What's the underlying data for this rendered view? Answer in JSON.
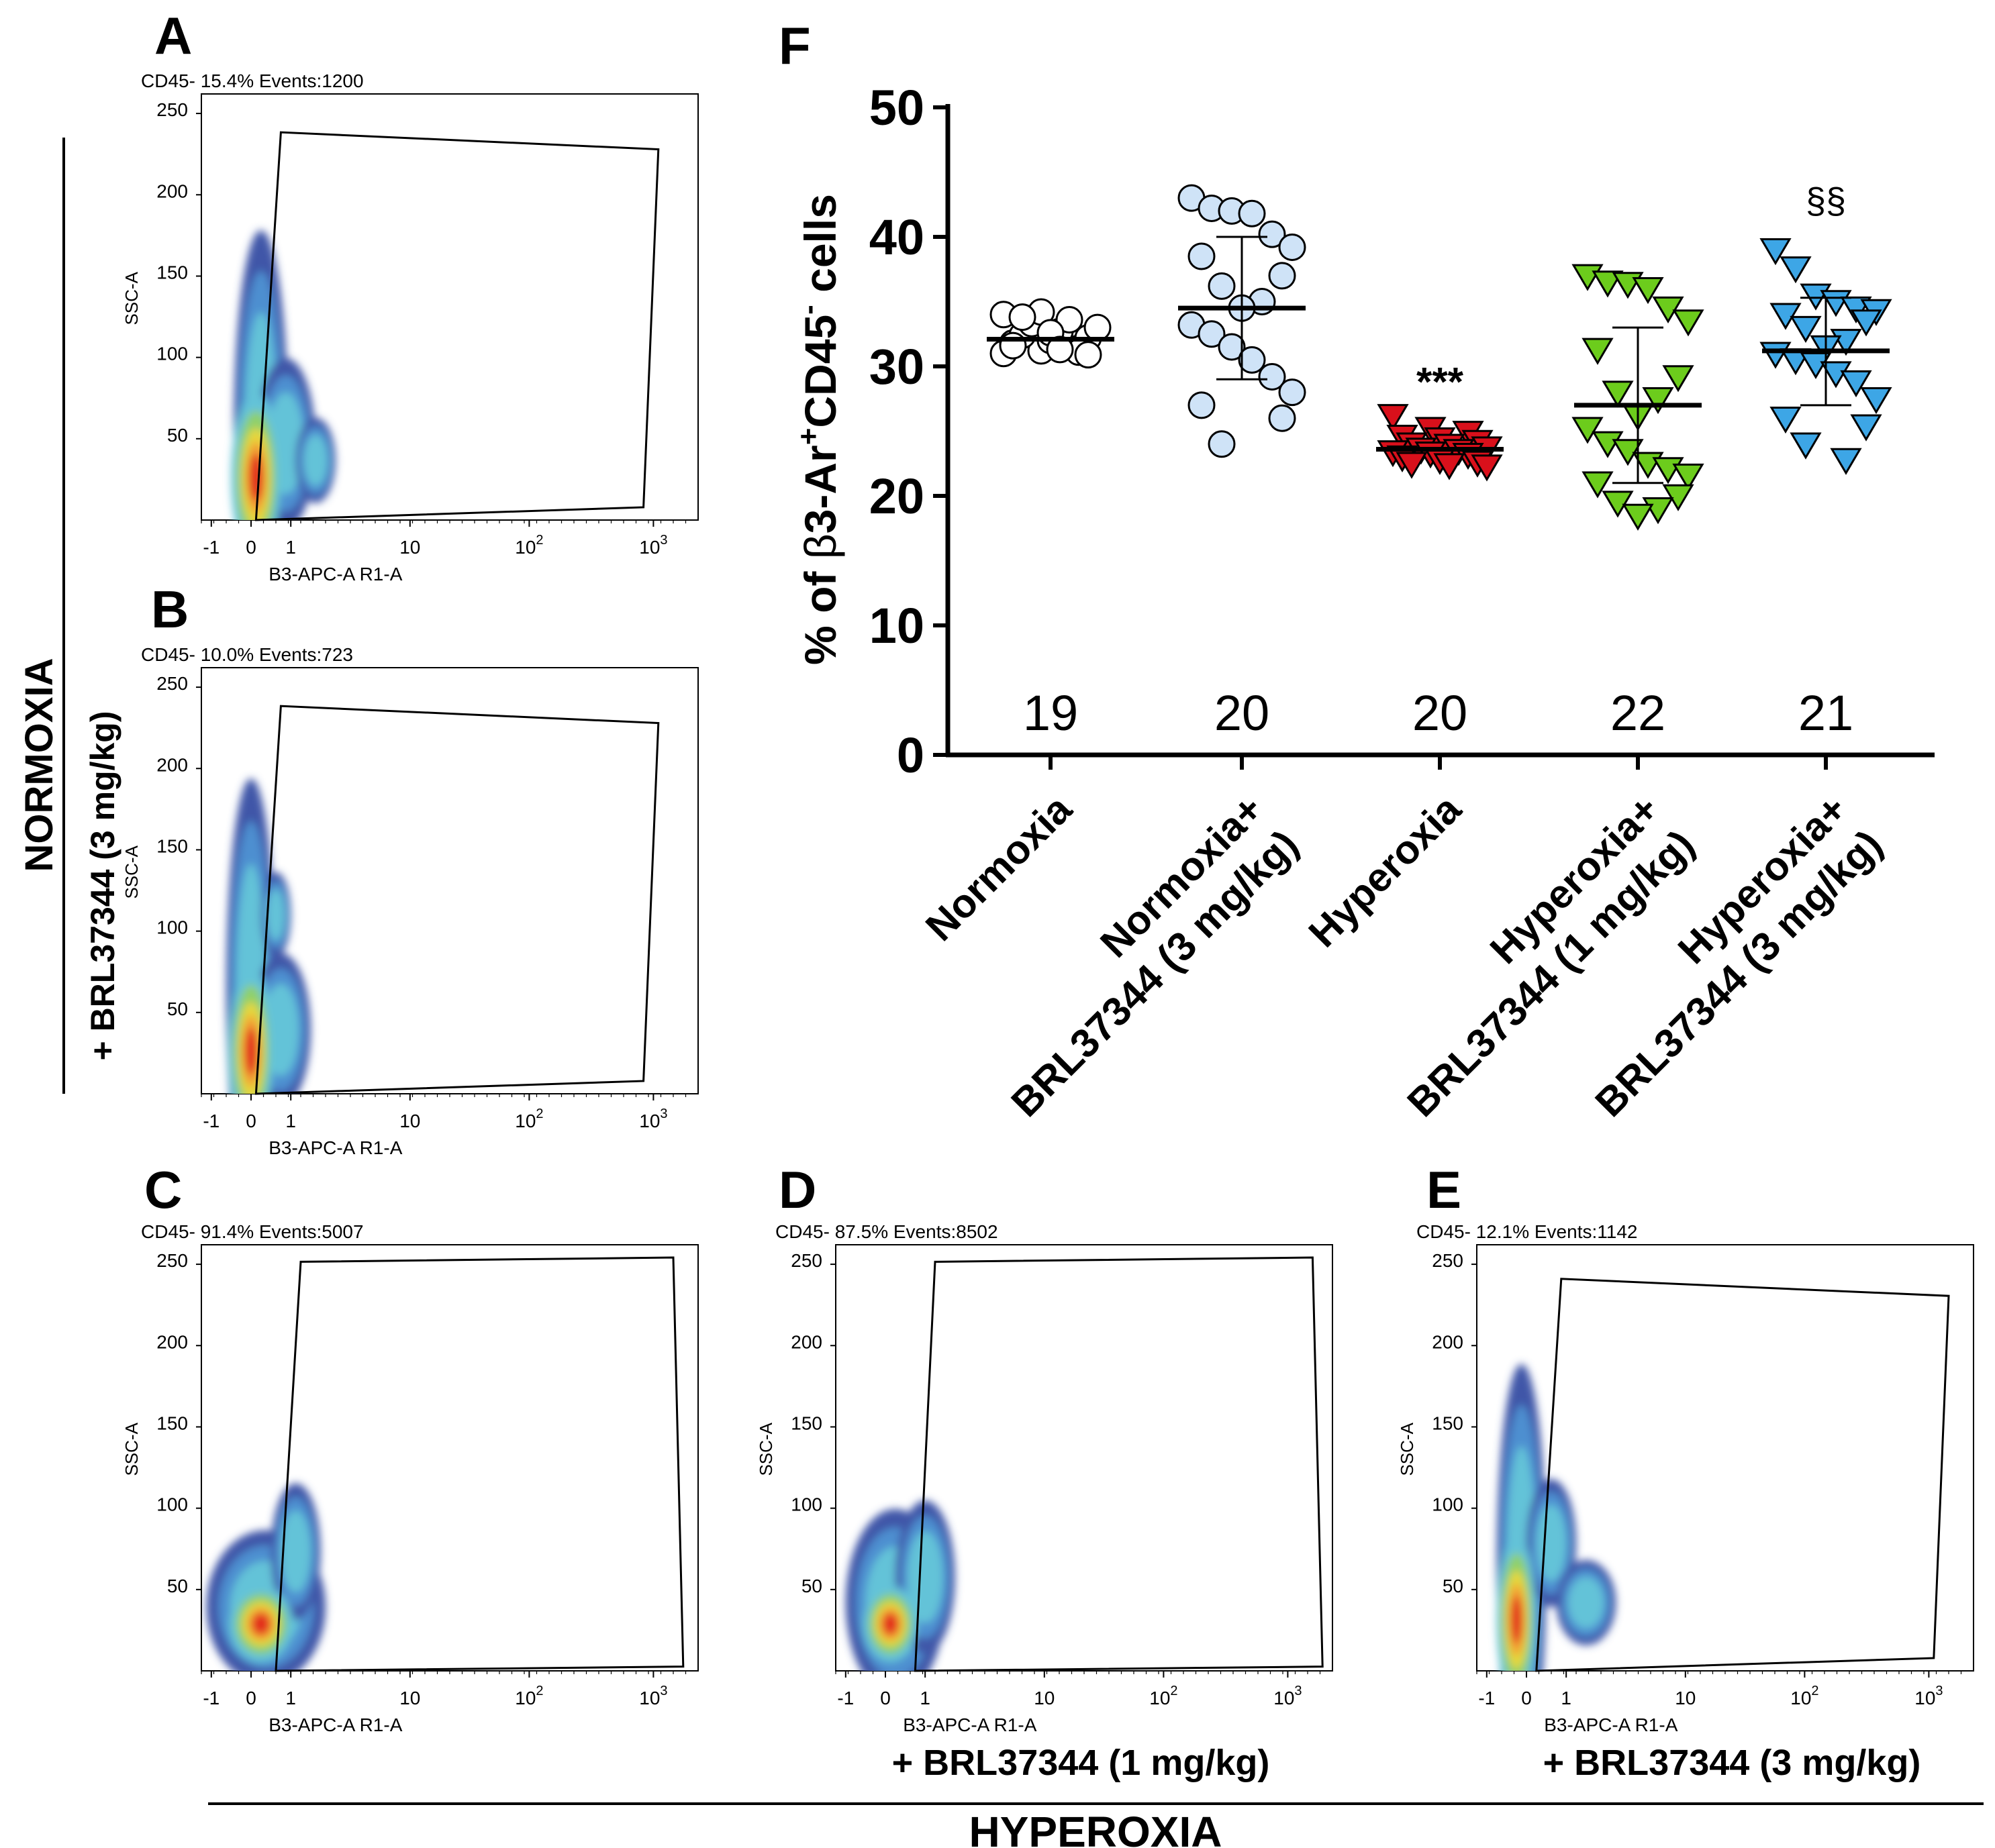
{
  "colors": {
    "normoxia": "#ffffff",
    "normoxia_brl": "#cfe3f7",
    "hyperoxia": "#d9101b",
    "hyperoxia_brl1": "#6ccc1c",
    "hyperoxia_brl3": "#3da6e6",
    "density_low": "#3f56a8",
    "density_mid1": "#4d8fd0",
    "density_mid2": "#63c3d8",
    "density_mid3": "#8fd06a",
    "density_high1": "#e7d73a",
    "density_high2": "#f29d35",
    "density_peak": "#e2291f"
  },
  "side_labels": {
    "normoxia": "NORMOXIA",
    "normoxia_brl": "+ BRL37344 (3 mg/kg)",
    "hyperoxia": "HYPEROXIA",
    "hyperoxia_brl1": "+ BRL37344 (1 mg/kg)",
    "hyperoxia_brl3": "+ BRL37344 (3 mg/kg)"
  },
  "flow_axes": {
    "xlabel": "B3-APC-A R1-A",
    "ylabel": "SSC-A",
    "yticks": [
      "250",
      "200",
      "150",
      "100",
      "50"
    ],
    "xticks": [
      "-1",
      "0",
      "1",
      "10",
      "10",
      "10"
    ],
    "xtick_exponents": [
      "",
      "",
      "",
      "",
      "2",
      "3"
    ]
  },
  "panels": [
    {
      "letter": "A",
      "gate_label": "CD45-",
      "percent": "15.4%",
      "events_label": "Events:1200",
      "events": 1200
    },
    {
      "letter": "B",
      "gate_label": "CD45-",
      "percent": "10.0%",
      "events_label": "Events:723",
      "events": 723
    },
    {
      "letter": "C",
      "gate_label": "CD45-",
      "percent": "91.4%",
      "events_label": "Events:5007",
      "events": 5007
    },
    {
      "letter": "D",
      "gate_label": "CD45-",
      "percent": "87.5%",
      "events_label": "Events:8502",
      "events": 8502
    },
    {
      "letter": "E",
      "gate_label": "CD45-",
      "percent": "12.1%",
      "events_label": "Events:1142",
      "events": 1142
    }
  ],
  "chart_data": [
    {
      "type": "scatter",
      "panel": "F",
      "title": "",
      "ylabel_parts": [
        "% of ",
        "β",
        "3-Ar",
        "+",
        "CD45",
        "-",
        " cells"
      ],
      "ylim": [
        0,
        50
      ],
      "yticks": [
        0,
        10,
        20,
        30,
        40,
        50
      ],
      "ytick_labels": [
        "0",
        "10",
        "20",
        "30",
        "40",
        "50"
      ],
      "categories": [
        [
          "Normoxia"
        ],
        [
          "Normoxia+",
          "BRL37344 (3 mg/kg)"
        ],
        [
          "Hyperoxia"
        ],
        [
          "Hyperoxia+",
          "BRL37344 (1 mg/kg)"
        ],
        [
          "Hyperoxia+",
          "BRL37344 (3 mg/kg)"
        ]
      ],
      "series": [
        {
          "name": "Normoxia",
          "marker": "circle",
          "n": "19",
          "mean": 32.1,
          "sd_low": 32.1,
          "sd_high": 32.1,
          "annotation": "",
          "values": [
            31.0,
            31.2,
            31.4,
            31.8,
            32.0,
            32.2,
            32.4,
            32.7,
            33.0,
            33.3,
            33.6,
            34.0,
            34.2,
            31.1,
            31.6,
            32.6,
            30.9,
            33.8,
            31.3
          ]
        },
        {
          "name": "Normoxia+BRL37344 (3 mg/kg)",
          "marker": "circle",
          "n": "20",
          "mean": 34.5,
          "sd_low": 29.0,
          "sd_high": 40.0,
          "annotation": "",
          "values": [
            43.0,
            42.2,
            42.0,
            41.8,
            40.2,
            39.2,
            38.5,
            37.0,
            36.2,
            35.0,
            34.5,
            33.2,
            32.5,
            31.5,
            30.5,
            29.2,
            28.0,
            27.0,
            26.0,
            24.0
          ]
        },
        {
          "name": "Hyperoxia",
          "marker": "triangle-down",
          "n": "20",
          "mean": 23.6,
          "sd_low": 23.6,
          "sd_high": 23.6,
          "annotation": "***",
          "values": [
            26.2,
            25.2,
            24.9,
            24.6,
            24.4,
            24.2,
            24.0,
            23.9,
            23.7,
            23.6,
            23.5,
            23.4,
            23.3,
            23.2,
            23.0,
            22.8,
            22.6,
            22.5,
            22.4,
            22.3
          ]
        },
        {
          "name": "Hyperoxia+BRL37344 (1 mg/kg)",
          "marker": "triangle-down",
          "n": "22",
          "mean": 27.0,
          "sd_low": 21.0,
          "sd_high": 33.0,
          "annotation": "",
          "values": [
            37.0,
            36.5,
            36.4,
            36.0,
            34.5,
            33.5,
            31.3,
            29.2,
            28.0,
            27.5,
            26.2,
            25.2,
            24.1,
            23.5,
            22.5,
            22.1,
            21.6,
            21.0,
            20.0,
            19.5,
            19.0,
            18.5
          ]
        },
        {
          "name": "Hyperoxia+BRL37344 (3 mg/kg)",
          "marker": "triangle-down",
          "n": "21",
          "mean": 31.2,
          "sd_low": 27.0,
          "sd_high": 35.3,
          "annotation": "§§",
          "values": [
            39.0,
            37.6,
            35.5,
            35.0,
            34.5,
            34.3,
            34.0,
            33.5,
            33.0,
            32.0,
            31.5,
            31.0,
            30.5,
            30.2,
            29.5,
            28.8,
            27.5,
            26.0,
            25.4,
            24.0,
            22.8
          ]
        }
      ]
    }
  ]
}
